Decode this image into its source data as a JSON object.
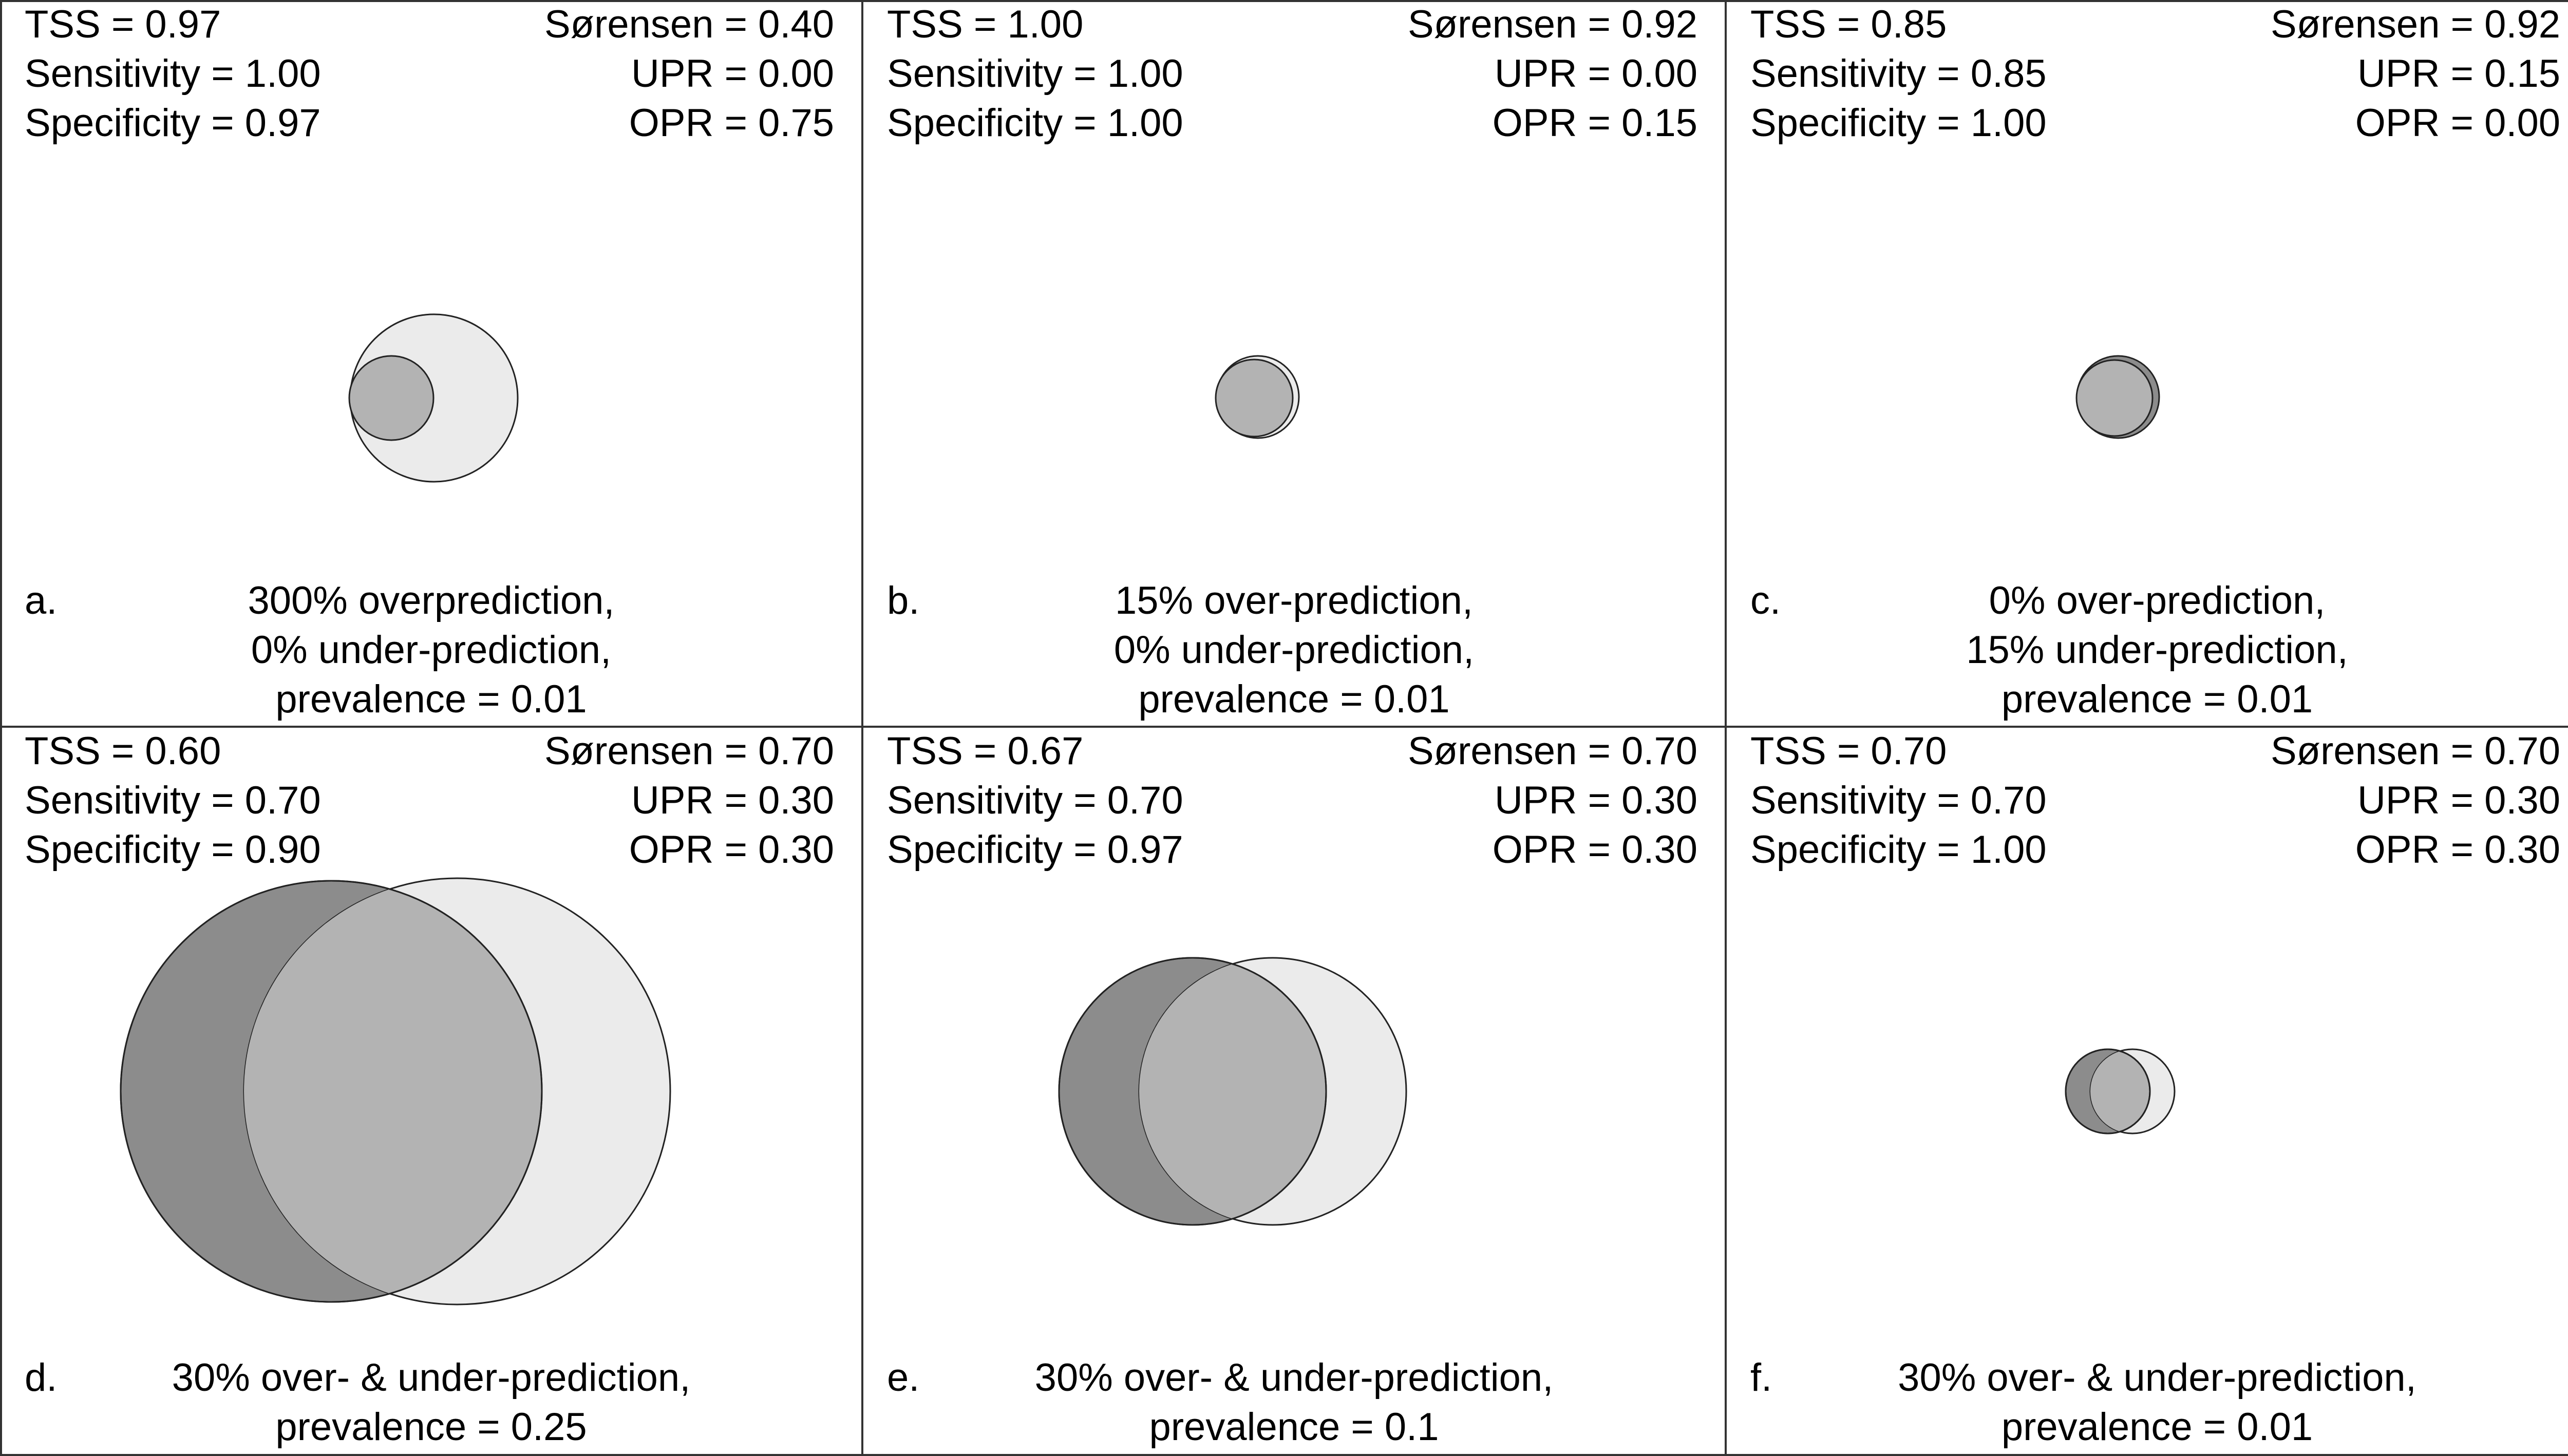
{
  "colors": {
    "observed_only": "#8c8c8c",
    "overlap": "#b3b3b3",
    "predicted_only": "#ebebeb",
    "stroke": "#222222"
  },
  "panels": [
    {
      "letter": "a.",
      "stats_left": [
        "TSS = 0.97",
        "Sensitivity = 1.00",
        "Specificity = 0.97"
      ],
      "stats_right": [
        "Sørensen = 0.40",
        "UPR = 0.00",
        "OPR = 0.75"
      ],
      "caption": [
        "300% overprediction,",
        "0% under-prediction,",
        "prevalence = 0.01"
      ]
    },
    {
      "letter": "b.",
      "stats_left": [
        "TSS = 1.00",
        "Sensitivity = 1.00",
        "Specificity = 1.00"
      ],
      "stats_right": [
        "Sørensen = 0.92",
        "UPR = 0.00",
        "OPR = 0.15"
      ],
      "caption": [
        "15% over-prediction,",
        "0% under-prediction,",
        "prevalence = 0.01"
      ]
    },
    {
      "letter": "c.",
      "stats_left": [
        "TSS = 0.85",
        "Sensitivity = 0.85",
        "Specificity = 1.00"
      ],
      "stats_right": [
        "Sørensen = 0.92",
        "UPR = 0.15",
        "OPR = 0.00"
      ],
      "caption": [
        "0% over-prediction,",
        "15% under-prediction,",
        "prevalence = 0.01"
      ]
    },
    {
      "letter": "d.",
      "stats_left": [
        "TSS = 0.60",
        "Sensitivity = 0.70",
        "Specificity = 0.90"
      ],
      "stats_right": [
        "Sørensen = 0.70",
        "UPR = 0.30",
        "OPR = 0.30"
      ],
      "caption": [
        "30% over- & under-prediction,",
        "prevalence = 0.25"
      ]
    },
    {
      "letter": "e.",
      "stats_left": [
        "TSS = 0.67",
        "Sensitivity = 0.70",
        "Specificity = 0.97"
      ],
      "stats_right": [
        "Sørensen = 0.70",
        "UPR = 0.30",
        "OPR = 0.30"
      ],
      "caption": [
        "30% over- & under-prediction,",
        "prevalence = 0.1"
      ]
    },
    {
      "letter": "f.",
      "stats_left": [
        "TSS = 0.70",
        "Sensitivity = 0.70",
        "Specificity = 1.00"
      ],
      "stats_right": [
        "Sørensen = 0.70",
        "UPR = 0.30",
        "OPR = 0.30"
      ],
      "caption": [
        "30% over- & under-prediction,",
        "prevalence = 0.01"
      ]
    }
  ]
}
